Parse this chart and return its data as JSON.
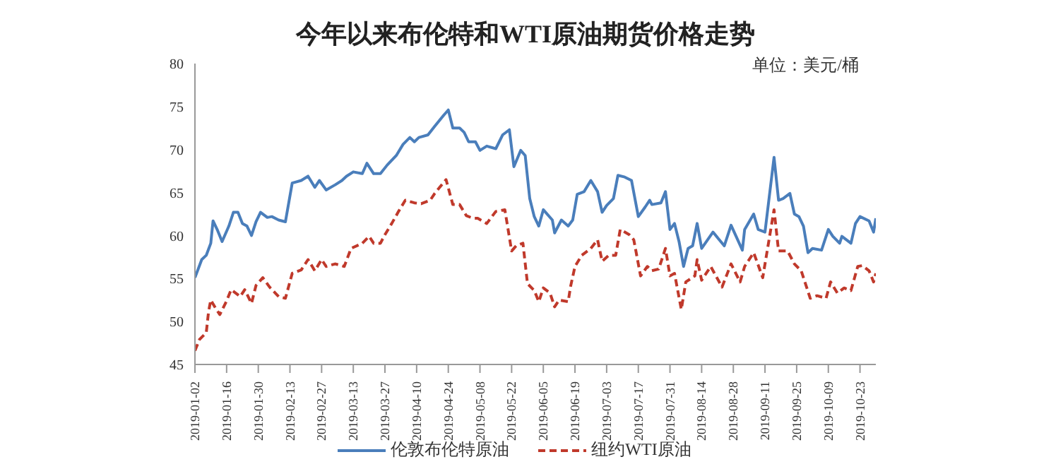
{
  "chart_data": {
    "type": "line",
    "title": "今年以来布伦特和WTI原油期货价格走势",
    "annotations": [
      "单位：美元/桶"
    ],
    "xlim": [
      "2019-01-02",
      "2019-10-30"
    ],
    "xticks": [
      "2019-01-02",
      "2019-01-16",
      "2019-01-30",
      "2019-02-13",
      "2019-02-27",
      "2019-03-13",
      "2019-03-27",
      "2019-04-10",
      "2019-04-24",
      "2019-05-08",
      "2019-05-22",
      "2019-06-05",
      "2019-06-19",
      "2019-07-03",
      "2019-07-17",
      "2019-07-31",
      "2019-08-14",
      "2019-08-28",
      "2019-09-11",
      "2019-09-25",
      "2019-10-09",
      "2019-10-23"
    ],
    "ylim": [
      45,
      80
    ],
    "yticks": [
      45,
      50,
      55,
      60,
      65,
      70,
      75,
      80
    ],
    "legend": "bottom",
    "marker": "none",
    "series": [
      {
        "name": "伦敦布伦特原油",
        "color": "#4a7ebb",
        "line_style": "solid",
        "x": [
          "2019-01-02",
          "2019-01-05",
          "2019-01-07",
          "2019-01-09",
          "2019-01-10",
          "2019-01-12",
          "2019-01-14",
          "2019-01-17",
          "2019-01-19",
          "2019-01-21",
          "2019-01-23",
          "2019-01-25",
          "2019-01-27",
          "2019-01-29",
          "2019-01-31",
          "2019-02-03",
          "2019-02-05",
          "2019-02-08",
          "2019-02-11",
          "2019-02-14",
          "2019-02-18",
          "2019-02-21",
          "2019-02-24",
          "2019-02-26",
          "2019-03-01",
          "2019-03-05",
          "2019-03-08",
          "2019-03-10",
          "2019-03-13",
          "2019-03-17",
          "2019-03-19",
          "2019-03-22",
          "2019-03-25",
          "2019-03-28",
          "2019-04-01",
          "2019-04-04",
          "2019-04-07",
          "2019-04-09",
          "2019-04-11",
          "2019-04-15",
          "2019-04-18",
          "2019-04-22",
          "2019-04-24",
          "2019-04-26",
          "2019-04-29",
          "2019-05-01",
          "2019-05-03",
          "2019-05-06",
          "2019-05-08",
          "2019-05-11",
          "2019-05-15",
          "2019-05-18",
          "2019-05-21",
          "2019-05-23",
          "2019-05-26",
          "2019-05-28",
          "2019-05-30",
          "2019-06-01",
          "2019-06-03",
          "2019-06-05",
          "2019-06-09",
          "2019-06-10",
          "2019-06-13",
          "2019-06-16",
          "2019-06-18",
          "2019-06-20",
          "2019-06-23",
          "2019-06-26",
          "2019-06-29",
          "2019-07-01",
          "2019-07-03",
          "2019-07-06",
          "2019-07-08",
          "2019-07-11",
          "2019-07-14",
          "2019-07-17",
          "2019-07-20",
          "2019-07-22",
          "2019-07-23",
          "2019-07-27",
          "2019-07-29",
          "2019-07-31",
          "2019-08-02",
          "2019-08-04",
          "2019-08-06",
          "2019-08-08",
          "2019-08-10",
          "2019-08-12",
          "2019-08-14",
          "2019-08-19",
          "2019-08-24",
          "2019-08-27",
          "2019-09-01",
          "2019-09-02",
          "2019-09-06",
          "2019-09-08",
          "2019-09-11",
          "2019-09-15",
          "2019-09-17",
          "2019-09-19",
          "2019-09-22",
          "2019-09-24",
          "2019-09-26",
          "2019-09-28",
          "2019-09-30",
          "2019-10-02",
          "2019-10-06",
          "2019-10-09",
          "2019-10-11",
          "2019-10-14",
          "2019-10-15",
          "2019-10-19",
          "2019-10-21",
          "2019-10-23",
          "2019-10-27",
          "2019-10-29",
          "2019-10-30"
        ],
        "values": [
          55.1,
          57.2,
          57.7,
          59.1,
          61.7,
          60.6,
          59.3,
          61.1,
          62.7,
          62.7,
          61.4,
          61.1,
          60.0,
          61.6,
          62.7,
          62.1,
          62.2,
          61.8,
          61.6,
          66.1,
          66.4,
          66.9,
          65.6,
          66.4,
          65.3,
          65.9,
          66.4,
          66.9,
          67.4,
          67.2,
          68.4,
          67.2,
          67.2,
          68.2,
          69.3,
          70.6,
          71.4,
          70.9,
          71.4,
          71.7,
          72.7,
          74.0,
          74.6,
          72.5,
          72.5,
          72.0,
          70.9,
          70.9,
          69.9,
          70.4,
          70.1,
          71.7,
          72.3,
          68.0,
          69.9,
          69.3,
          64.3,
          62.2,
          61.1,
          63.0,
          61.8,
          60.3,
          61.8,
          61.1,
          61.8,
          64.8,
          65.1,
          66.4,
          65.1,
          62.7,
          63.5,
          64.3,
          67.0,
          66.8,
          66.4,
          62.2,
          63.3,
          64.1,
          63.6,
          63.8,
          65.1,
          60.7,
          61.4,
          59.3,
          56.4,
          58.5,
          58.8,
          61.4,
          58.5,
          60.4,
          58.8,
          61.2,
          58.3,
          60.7,
          62.5,
          60.7,
          60.4,
          69.1,
          64.1,
          64.3,
          64.9,
          62.5,
          62.2,
          61.1,
          58.0,
          58.5,
          58.3,
          60.7,
          59.9,
          59.1,
          59.9,
          59.1,
          61.4,
          62.2,
          61.7,
          60.4,
          62.0
        ]
      },
      {
        "name": "纽约WTI原油",
        "color": "#c0392b",
        "line_style": "dashed",
        "x": [
          "2019-01-02",
          "2019-01-04",
          "2019-01-07",
          "2019-01-08",
          "2019-01-09",
          "2019-01-11",
          "2019-01-13",
          "2019-01-16",
          "2019-01-18",
          "2019-01-22",
          "2019-01-24",
          "2019-01-27",
          "2019-01-29",
          "2019-02-01",
          "2019-02-04",
          "2019-02-08",
          "2019-02-11",
          "2019-02-14",
          "2019-02-18",
          "2019-02-21",
          "2019-02-24",
          "2019-02-27",
          "2019-03-01",
          "2019-03-05",
          "2019-03-09",
          "2019-03-12",
          "2019-03-17",
          "2019-03-20",
          "2019-03-22",
          "2019-03-25",
          "2019-03-27",
          "2019-03-30",
          "2019-04-02",
          "2019-04-05",
          "2019-04-09",
          "2019-04-12",
          "2019-04-16",
          "2019-04-18",
          "2019-04-23",
          "2019-04-26",
          "2019-04-29",
          "2019-05-02",
          "2019-05-05",
          "2019-05-07",
          "2019-05-11",
          "2019-05-15",
          "2019-05-19",
          "2019-05-22",
          "2019-05-24",
          "2019-05-27",
          "2019-05-29",
          "2019-06-01",
          "2019-06-03",
          "2019-06-05",
          "2019-06-08",
          "2019-06-10",
          "2019-06-12",
          "2019-06-16",
          "2019-06-17",
          "2019-06-19",
          "2019-06-22",
          "2019-06-26",
          "2019-06-29",
          "2019-07-01",
          "2019-07-04",
          "2019-07-07",
          "2019-07-09",
          "2019-07-13",
          "2019-07-15",
          "2019-07-18",
          "2019-07-21",
          "2019-07-23",
          "2019-07-26",
          "2019-07-29",
          "2019-07-31",
          "2019-08-02",
          "2019-08-05",
          "2019-08-07",
          "2019-08-11",
          "2019-08-12",
          "2019-08-14",
          "2019-08-18",
          "2019-08-23",
          "2019-08-27",
          "2019-08-31",
          "2019-09-02",
          "2019-09-06",
          "2019-09-10",
          "2019-09-15",
          "2019-09-17",
          "2019-09-21",
          "2019-09-24",
          "2019-09-27",
          "2019-10-01",
          "2019-10-04",
          "2019-10-08",
          "2019-10-10",
          "2019-10-13",
          "2019-10-16",
          "2019-10-19",
          "2019-10-22",
          "2019-10-24",
          "2019-10-27",
          "2019-10-29",
          "2019-10-30"
        ],
        "values": [
          46.6,
          47.9,
          48.7,
          51.1,
          52.5,
          51.6,
          50.8,
          52.4,
          53.7,
          52.9,
          53.7,
          52.1,
          54.2,
          55.1,
          54.0,
          52.9,
          52.7,
          55.6,
          56.0,
          57.2,
          55.9,
          57.2,
          56.4,
          56.7,
          56.4,
          58.5,
          59.1,
          59.9,
          59.1,
          59.1,
          60.1,
          61.4,
          62.8,
          64.1,
          63.8,
          63.7,
          64.1,
          64.9,
          66.5,
          63.6,
          63.6,
          62.3,
          62.0,
          62.0,
          61.4,
          62.8,
          63.0,
          58.2,
          58.8,
          59.1,
          54.4,
          53.6,
          52.3,
          53.9,
          53.3,
          51.7,
          52.5,
          52.3,
          54.0,
          56.4,
          57.7,
          58.5,
          59.5,
          57.0,
          57.7,
          57.7,
          60.7,
          60.1,
          59.5,
          55.3,
          56.4,
          55.9,
          56.1,
          58.5,
          55.3,
          55.6,
          51.4,
          54.6,
          55.3,
          57.2,
          54.8,
          56.4,
          54.0,
          56.7,
          54.6,
          56.4,
          58.0,
          55.1,
          63.0,
          58.2,
          58.2,
          56.7,
          55.9,
          52.7,
          53.0,
          52.7,
          54.6,
          53.3,
          53.9,
          53.6,
          56.4,
          56.5,
          55.9,
          54.6,
          55.6
        ]
      }
    ]
  }
}
